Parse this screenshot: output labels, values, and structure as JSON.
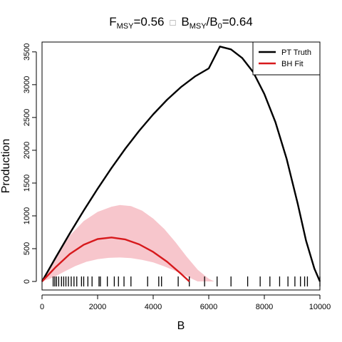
{
  "chart_data": {
    "type": "line",
    "title": {
      "part1_main": "F",
      "part1_sub": "MSY",
      "part1_rest": "=0.56",
      "separator": "□",
      "part2_main": "B",
      "part2_sub": "MSY",
      "part2_slash": "/",
      "part2_main2": "B",
      "part2_sub2": "0",
      "part2_rest": "=0.64"
    },
    "xlabel": "B",
    "ylabel": "Production",
    "xlim": [
      0,
      10000
    ],
    "ylim": [
      -130,
      3650
    ],
    "xticks": [
      0,
      2000,
      4000,
      6000,
      8000,
      10000
    ],
    "xtick_labels": [
      "0",
      "2000",
      "4000",
      "6000",
      "8000",
      "10000"
    ],
    "yticks": [
      0,
      500,
      1000,
      1500,
      2000,
      2500,
      3000,
      3500
    ],
    "ytick_labels": [
      "0",
      "500",
      "1000",
      "1500",
      "2000",
      "2500",
      "3000",
      "3500"
    ],
    "legend": {
      "position": "top-right",
      "entries": [
        {
          "label": "PT Truth",
          "color": "#000000"
        },
        {
          "label": "BH Fit",
          "color": "#d7191c"
        }
      ]
    },
    "series": [
      {
        "name": "PT Truth",
        "color": "#000000",
        "x": [
          0,
          500,
          1000,
          1500,
          2000,
          2500,
          3000,
          3500,
          4000,
          4500,
          5000,
          5500,
          6000,
          6400,
          6800,
          7200,
          7600,
          8000,
          8400,
          8800,
          9200,
          9500,
          9800,
          10000
        ],
        "y": [
          0,
          371,
          733,
          1081,
          1414,
          1730,
          2026,
          2299,
          2548,
          2770,
          2963,
          3124,
          3248,
          3582,
          3538,
          3408,
          3190,
          2858,
          2428,
          1873,
          1188,
          624,
          197,
          0
        ]
      },
      {
        "name": "BH Fit",
        "color": "#d7191c",
        "x": [
          0,
          500,
          1000,
          1500,
          2000,
          2500,
          3000,
          3500,
          4000,
          4500,
          5000,
          5300
        ],
        "y": [
          0,
          222,
          418,
          560,
          647,
          670,
          640,
          565,
          450,
          300,
          118,
          0
        ]
      }
    ],
    "band": {
      "name": "BH Fit interval",
      "color": "#f7c6cc",
      "x": [
        0,
        500,
        1000,
        1500,
        2000,
        2500,
        2800,
        3200,
        3600,
        4000,
        4400,
        4800,
        5200,
        5600,
        6000,
        6200,
        6000,
        5600,
        5200,
        4800,
        4400,
        4000,
        3600,
        3200,
        2800,
        2400,
        2000,
        1600,
        1200,
        800,
        400,
        0
      ],
      "y": [
        0,
        380,
        700,
        920,
        1060,
        1140,
        1165,
        1150,
        1080,
        960,
        800,
        600,
        380,
        180,
        40,
        0,
        0,
        0,
        80,
        160,
        230,
        290,
        330,
        355,
        365,
        360,
        340,
        300,
        235,
        150,
        60,
        0
      ]
    },
    "rug": [
      400,
      460,
      520,
      600,
      700,
      780,
      860,
      950,
      1050,
      1150,
      1250,
      1420,
      1500,
      1650,
      1800,
      2050,
      2100,
      2350,
      2600,
      2750,
      2950,
      3200,
      3800,
      4200,
      4300,
      4900,
      5300,
      5850,
      6300,
      6800,
      7400,
      7850,
      8200,
      8550,
      8850,
      9100,
      9300,
      9450,
      9550,
      10000
    ]
  }
}
